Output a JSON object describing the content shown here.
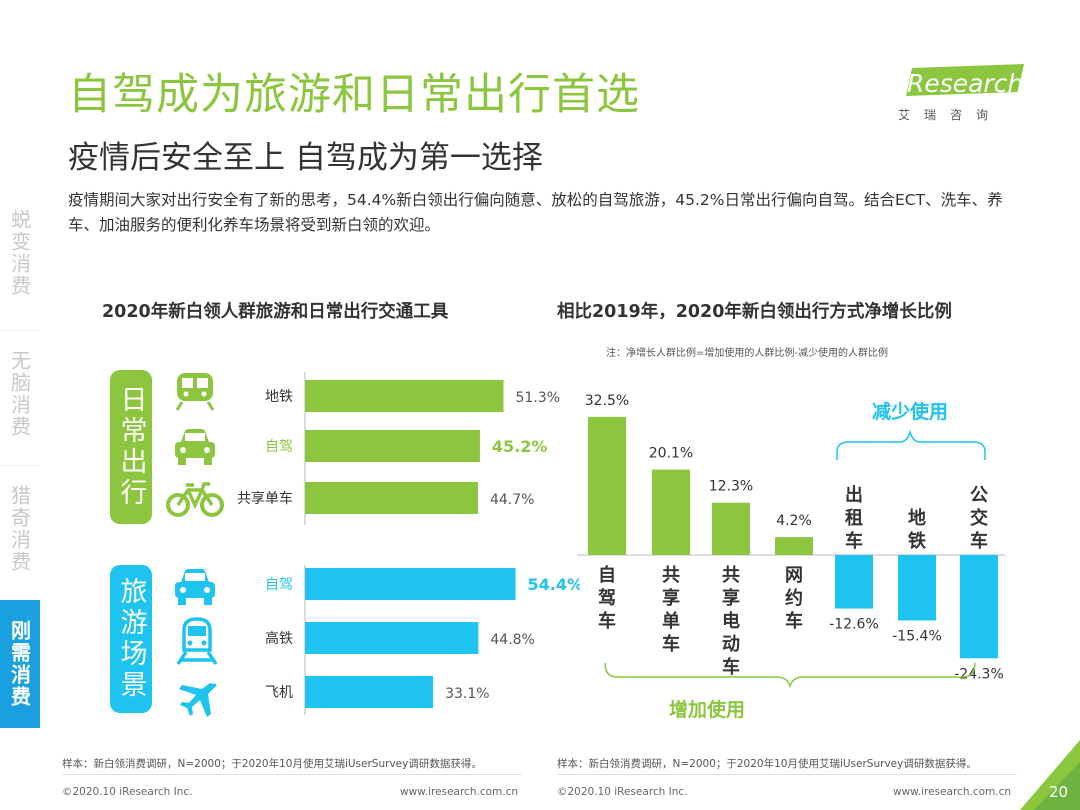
{
  "header": {
    "title": "自驾成为旅游和日常出行首选",
    "subtitle": "疫情后安全至上 自驾成为第一选择",
    "description": "疫情期间大家对出行安全有了新的思考，54.4%新白领出行偏向随意、放松的自驾旅游，45.2%日常出行偏向自驾。结合ECT、洗车、养车、加油服务的便利化养车场景将受到新白领的欢迎。",
    "logo_text": "iResearch",
    "logo_cn": "艾瑞咨询"
  },
  "sidebar": {
    "items": [
      {
        "label": "蜕变消费",
        "active": false
      },
      {
        "label": "无脑消费",
        "active": false
      },
      {
        "label": "猎奇消费",
        "active": false
      },
      {
        "label": "刚需消费",
        "active": true
      }
    ]
  },
  "colors": {
    "green": "#8cc63f",
    "blue": "#1ec3ef",
    "gray": "#c8c8c8"
  },
  "chart_data": [
    {
      "type": "bar",
      "orientation": "horizontal",
      "title": "2020年新白领人群旅游和日常出行交通工具",
      "groups": [
        {
          "name": "日常出行",
          "color": "#8cc63f",
          "categories": [
            "地铁",
            "自驾",
            "共享单车"
          ],
          "values": [
            51.3,
            45.2,
            44.7
          ],
          "value_labels": [
            "51.3%",
            "45.2%",
            "44.7%"
          ],
          "icons": [
            "subway-icon",
            "car-icon",
            "bicycle-icon"
          ],
          "highlight_index": 1
        },
        {
          "name": "旅游场景",
          "color": "#1ec3ef",
          "categories": [
            "自驾",
            "高铁",
            "飞机"
          ],
          "values": [
            54.4,
            44.8,
            33.1
          ],
          "value_labels": [
            "54.4%",
            "44.8%",
            "33.1%"
          ],
          "icons": [
            "car-icon",
            "high-speed-rail-icon",
            "airplane-icon"
          ],
          "highlight_index": 0
        }
      ],
      "source": "样本：新白领消费调研，N=2000；于2020年10月使用艾瑞iUserSurvey调研数据获得。"
    },
    {
      "type": "bar",
      "orientation": "vertical",
      "title": "相比2019年，2020年新白领出行方式净增长比例",
      "note": "注：净增长人群比例=增加使用的人群比例-减少使用的人群比例",
      "categories": [
        "自驾车",
        "共享单车",
        "共享电动车",
        "网约车",
        "出租车",
        "地铁",
        "公交车"
      ],
      "values": [
        32.5,
        20.1,
        12.3,
        4.2,
        -12.6,
        -15.4,
        -24.3
      ],
      "value_labels": [
        "32.5%",
        "20.1%",
        "12.3%",
        "4.2%",
        "-12.6%",
        "-15.4%",
        "-24.3%"
      ],
      "bracket_increase": "增加使用",
      "bracket_decrease": "减少使用",
      "ylim": [
        -26,
        34
      ],
      "source": "样本：新白领消费调研，N=2000；于2020年10月使用艾瑞iUserSurvey调研数据获得。"
    }
  ],
  "footer": {
    "copyright_left": "©2020.10 iResearch Inc.",
    "url_left": "www.iresearch.com.cn",
    "copyright_right": "©2020.10 iResearch Inc.",
    "url_right": "www.iresearch.com.cn",
    "page_number": "20"
  }
}
